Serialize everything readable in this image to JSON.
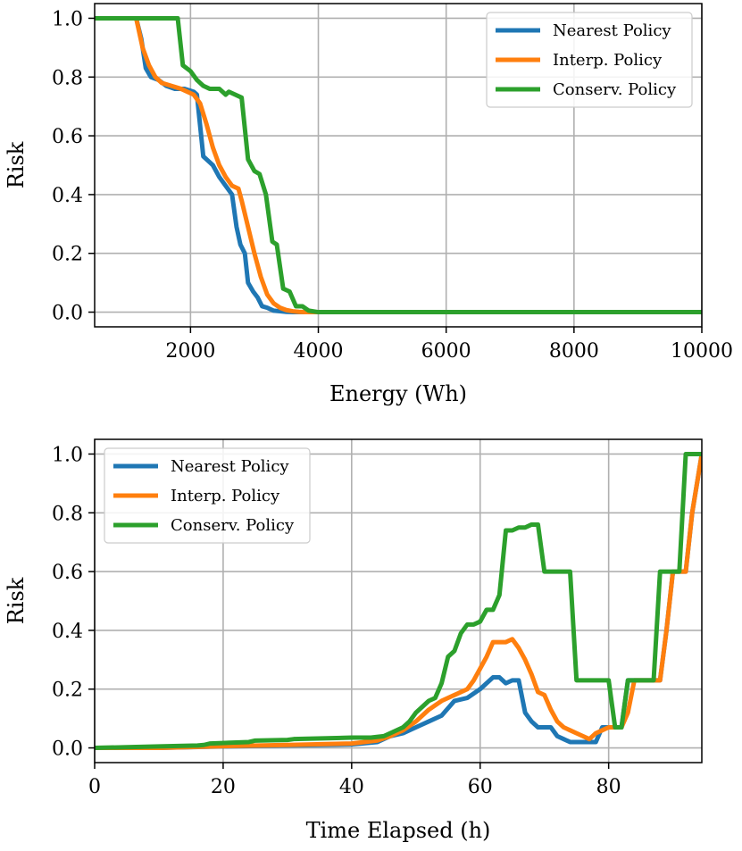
{
  "chart_data": [
    {
      "type": "line",
      "xlabel": "Energy (Wh)",
      "ylabel": "Risk",
      "xlim": [
        500,
        10000
      ],
      "ylim": [
        -0.05,
        1.05
      ],
      "xticks": [
        2000,
        4000,
        6000,
        8000,
        10000
      ],
      "xtick_labels": [
        "2000",
        "4000",
        "6000",
        "8000",
        "10000"
      ],
      "yticks": [
        0.0,
        0.2,
        0.4,
        0.6,
        0.8,
        1.0
      ],
      "ytick_labels": [
        "0.0",
        "0.2",
        "0.4",
        "0.6",
        "0.8",
        "1.0"
      ],
      "grid": true,
      "legend_position": "top-right",
      "series": [
        {
          "name": "Nearest Policy",
          "color": "#1f77b4",
          "x": [
            500,
            1150,
            1230,
            1300,
            1380,
            1500,
            1620,
            1750,
            1900,
            2050,
            2100,
            2200,
            2300,
            2350,
            2450,
            2550,
            2650,
            2720,
            2780,
            2850,
            2900,
            2980,
            3050,
            3120,
            3200,
            3300,
            3400,
            3500,
            3600,
            4000,
            10000
          ],
          "y": [
            1.0,
            1.0,
            0.93,
            0.83,
            0.8,
            0.79,
            0.77,
            0.76,
            0.76,
            0.75,
            0.74,
            0.53,
            0.51,
            0.5,
            0.46,
            0.43,
            0.4,
            0.29,
            0.23,
            0.2,
            0.1,
            0.07,
            0.05,
            0.02,
            0.015,
            0.005,
            0.003,
            0.001,
            0.0,
            0.0,
            0.0
          ]
        },
        {
          "name": "Interp. Policy",
          "color": "#ff7f0e",
          "x": [
            500,
            1150,
            1250,
            1350,
            1450,
            1550,
            1700,
            1850,
            1950,
            2050,
            2150,
            2250,
            2350,
            2450,
            2550,
            2650,
            2750,
            2800,
            2900,
            3000,
            3100,
            3200,
            3300,
            3400,
            3500,
            3600,
            3700,
            3800,
            4000,
            10000
          ],
          "y": [
            1.0,
            1.0,
            0.9,
            0.84,
            0.8,
            0.78,
            0.77,
            0.76,
            0.75,
            0.74,
            0.71,
            0.64,
            0.56,
            0.5,
            0.46,
            0.43,
            0.42,
            0.38,
            0.29,
            0.2,
            0.12,
            0.06,
            0.03,
            0.015,
            0.007,
            0.003,
            0.001,
            0.0,
            0.0,
            0.0
          ]
        },
        {
          "name": "Conserv. Policy",
          "color": "#2ca02c",
          "x": [
            500,
            1800,
            1880,
            2000,
            2100,
            2200,
            2300,
            2450,
            2550,
            2600,
            2700,
            2800,
            2900,
            3000,
            3080,
            3180,
            3280,
            3350,
            3450,
            3550,
            3650,
            3750,
            3850,
            4000,
            10000
          ],
          "y": [
            1.0,
            1.0,
            0.84,
            0.82,
            0.79,
            0.77,
            0.76,
            0.76,
            0.74,
            0.75,
            0.74,
            0.73,
            0.52,
            0.48,
            0.47,
            0.4,
            0.24,
            0.23,
            0.08,
            0.07,
            0.02,
            0.02,
            0.005,
            0.0,
            0.0
          ]
        }
      ]
    },
    {
      "type": "line",
      "xlabel": "Time Elapsed (h)",
      "ylabel": "Risk",
      "xlim": [
        0,
        94.5
      ],
      "ylim": [
        -0.05,
        1.05
      ],
      "xticks": [
        0,
        20,
        40,
        60,
        80
      ],
      "xtick_labels": [
        "0",
        "20",
        "40",
        "60",
        "80"
      ],
      "yticks": [
        0.0,
        0.2,
        0.4,
        0.6,
        0.8,
        1.0
      ],
      "ytick_labels": [
        "0.0",
        "0.2",
        "0.4",
        "0.6",
        "0.8",
        "1.0"
      ],
      "grid": true,
      "legend_position": "top-left",
      "series": [
        {
          "name": "Nearest Policy",
          "color": "#1f77b4",
          "x": [
            0,
            10,
            20,
            30,
            40,
            44,
            46,
            48,
            50,
            52,
            54,
            56,
            58,
            60,
            61,
            62,
            63,
            64,
            65,
            66,
            67,
            68,
            69,
            70,
            71,
            72,
            73,
            74,
            75,
            76,
            77,
            78,
            79,
            80,
            81,
            82,
            83,
            84,
            85,
            86,
            87,
            88,
            89,
            90,
            91,
            92,
            93,
            94.5
          ],
          "y": [
            0.0,
            0.0,
            0.005,
            0.008,
            0.012,
            0.02,
            0.04,
            0.05,
            0.07,
            0.09,
            0.11,
            0.16,
            0.17,
            0.2,
            0.22,
            0.24,
            0.24,
            0.22,
            0.23,
            0.23,
            0.12,
            0.09,
            0.07,
            0.07,
            0.07,
            0.04,
            0.03,
            0.02,
            0.02,
            0.02,
            0.02,
            0.02,
            0.07,
            0.07,
            0.07,
            0.07,
            0.23,
            0.23,
            0.23,
            0.23,
            0.23,
            0.23,
            0.4,
            0.6,
            0.6,
            0.6,
            0.8,
            1.0
          ]
        },
        {
          "name": "Interp. Policy",
          "color": "#ff7f0e",
          "x": [
            0,
            10,
            20,
            30,
            40,
            44,
            46,
            48,
            50,
            52,
            54,
            56,
            58,
            59,
            60,
            61,
            62,
            63,
            64,
            65,
            66,
            67,
            68,
            69,
            70,
            71,
            72,
            73,
            74,
            75,
            76,
            77,
            78,
            79,
            80,
            81,
            82,
            83,
            84,
            85,
            86,
            87,
            88,
            89,
            90,
            91,
            92,
            93,
            94.5
          ],
          "y": [
            0.0,
            0.0,
            0.006,
            0.01,
            0.015,
            0.025,
            0.04,
            0.06,
            0.09,
            0.13,
            0.16,
            0.18,
            0.2,
            0.23,
            0.27,
            0.31,
            0.36,
            0.36,
            0.36,
            0.37,
            0.34,
            0.3,
            0.25,
            0.19,
            0.18,
            0.13,
            0.09,
            0.07,
            0.06,
            0.05,
            0.04,
            0.03,
            0.05,
            0.06,
            0.07,
            0.07,
            0.07,
            0.12,
            0.23,
            0.23,
            0.23,
            0.23,
            0.23,
            0.4,
            0.6,
            0.6,
            0.6,
            0.8,
            1.0
          ]
        },
        {
          "name": "Conserv. Policy",
          "color": "#2ca02c",
          "x": [
            0,
            10,
            16,
            17,
            18,
            24,
            25,
            30,
            31,
            40,
            43,
            45,
            46,
            48,
            49,
            50,
            51,
            52,
            53,
            54,
            55,
            56,
            57,
            58,
            59,
            60,
            61,
            62,
            63,
            64,
            65,
            66,
            67,
            68,
            69,
            70,
            71,
            72,
            73,
            74,
            75,
            76,
            77,
            78,
            79,
            80,
            81,
            82,
            83,
            84,
            85,
            86,
            87,
            88,
            89,
            90,
            91,
            92,
            93,
            94.5
          ],
          "y": [
            0.0,
            0.005,
            0.008,
            0.01,
            0.015,
            0.02,
            0.025,
            0.027,
            0.03,
            0.035,
            0.035,
            0.04,
            0.05,
            0.07,
            0.09,
            0.12,
            0.14,
            0.16,
            0.17,
            0.22,
            0.31,
            0.33,
            0.39,
            0.42,
            0.42,
            0.43,
            0.47,
            0.47,
            0.52,
            0.74,
            0.74,
            0.75,
            0.75,
            0.76,
            0.76,
            0.6,
            0.6,
            0.6,
            0.6,
            0.6,
            0.23,
            0.23,
            0.23,
            0.23,
            0.23,
            0.23,
            0.07,
            0.07,
            0.23,
            0.23,
            0.23,
            0.23,
            0.23,
            0.6,
            0.6,
            0.6,
            0.6,
            1.0,
            1.0,
            1.0
          ]
        }
      ]
    }
  ]
}
